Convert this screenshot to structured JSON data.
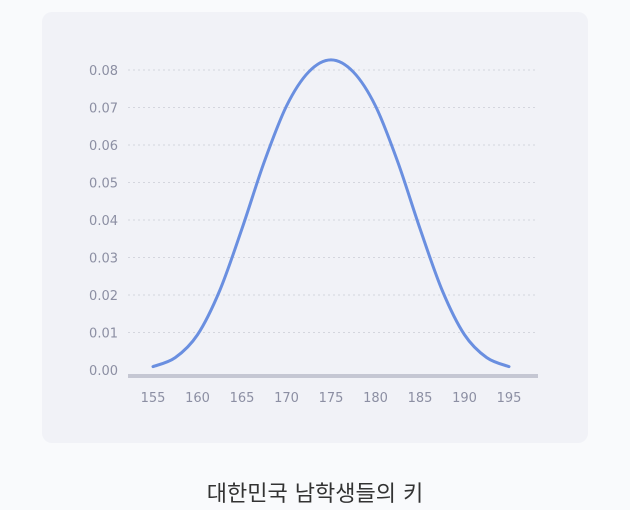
{
  "caption": "대한민국 남학생들의 키",
  "colors": {
    "line": "#6a8fe0",
    "grid": "#d4d6de",
    "axis": "#c5c7d3",
    "tick": "#8c8fa3"
  },
  "chart_data": {
    "type": "line",
    "title": "",
    "xlabel": "",
    "ylabel": "",
    "x_ticks": [
      155,
      160,
      165,
      170,
      175,
      180,
      185,
      190,
      195
    ],
    "y_ticks": [
      "0.00",
      "0.01",
      "0.02",
      "0.03",
      "0.04",
      "0.05",
      "0.06",
      "0.07",
      "0.08"
    ],
    "xlim": [
      155,
      195
    ],
    "ylim": [
      0,
      0.08
    ],
    "grid": true,
    "series": [
      {
        "x": [
          155,
          157.5,
          160,
          162.5,
          165,
          167.5,
          170,
          172.5,
          175,
          177.5,
          180,
          182.5,
          185,
          187.5,
          190,
          192.5,
          195
        ],
        "y": [
          0.0009,
          0.0033,
          0.0094,
          0.0212,
          0.0377,
          0.0555,
          0.0704,
          0.0795,
          0.0827,
          0.0795,
          0.0704,
          0.0555,
          0.0377,
          0.0212,
          0.0094,
          0.0033,
          0.0009
        ]
      }
    ]
  }
}
